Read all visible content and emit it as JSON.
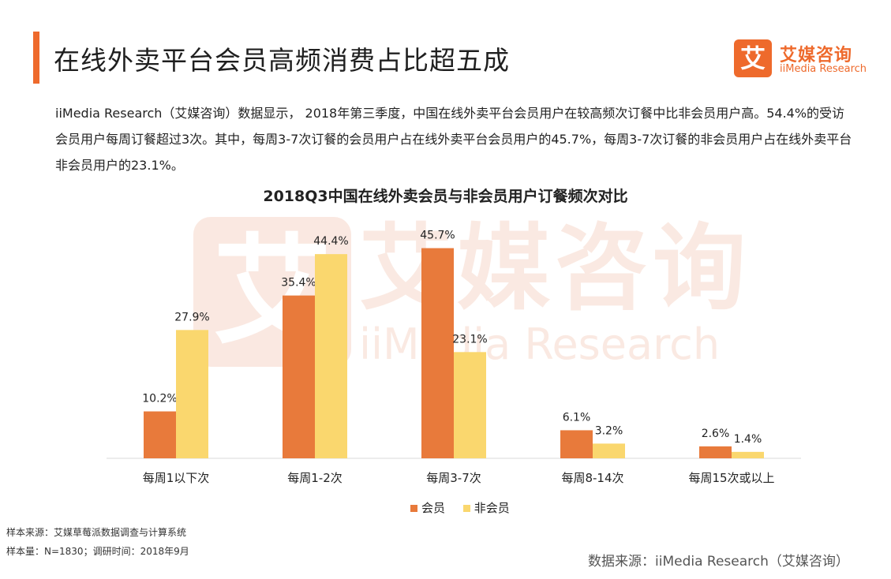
{
  "header": {
    "title": "在线外卖平台会员高频消费占比超五成"
  },
  "logo": {
    "name": "艾媒咨询",
    "sub": "iiMedia Research",
    "mark": "艾"
  },
  "description": "iiMedia Research（艾媒咨询）数据显示， 2018年第三季度，中国在线外卖平台会员用户在较高频次订餐中比非会员用户高。54.4%的受访会员用户每周订餐超过3次。其中，每周3-7次订餐的会员用户占在线外卖平台会员用户的45.7%，每周3-7次订餐的非会员用户占在线外卖平台非会员用户的23.1%。",
  "watermark": {
    "name": "艾媒咨询",
    "sub": "iiMedia Research",
    "mark": "艾"
  },
  "colors": {
    "accent": "#ee6a2c",
    "member": "#e87a3b",
    "non_member": "#fad76e"
  },
  "chart_data": {
    "type": "bar",
    "title": "2018Q3中国在线外卖会员与非会员用户订餐频次对比",
    "categories": [
      "每周1以下次",
      "每周1-2次",
      "每周3-7次",
      "每周8-14次",
      "每周15次或以上"
    ],
    "series": [
      {
        "name": "会员",
        "values": [
          10.2,
          35.4,
          45.7,
          6.1,
          2.6
        ],
        "labels": [
          "10.2%",
          "35.4%",
          "45.7%",
          "6.1%",
          "2.6%"
        ]
      },
      {
        "name": "非会员",
        "values": [
          27.9,
          44.4,
          23.1,
          3.2,
          1.4
        ],
        "labels": [
          "27.9%",
          "44.4%",
          "23.1%",
          "3.2%",
          "1.4%"
        ]
      }
    ],
    "unit": "%",
    "ylim": [
      0,
      50
    ],
    "grid": false,
    "legend_position": "bottom"
  },
  "footer": {
    "sample_source": "样本来源：艾媒草莓派数据调查与计算系统",
    "sample_size": "样本量：N=1830；调研时间：2018年9月",
    "data_source": "数据来源：iiMedia Research（艾媒咨询）"
  }
}
